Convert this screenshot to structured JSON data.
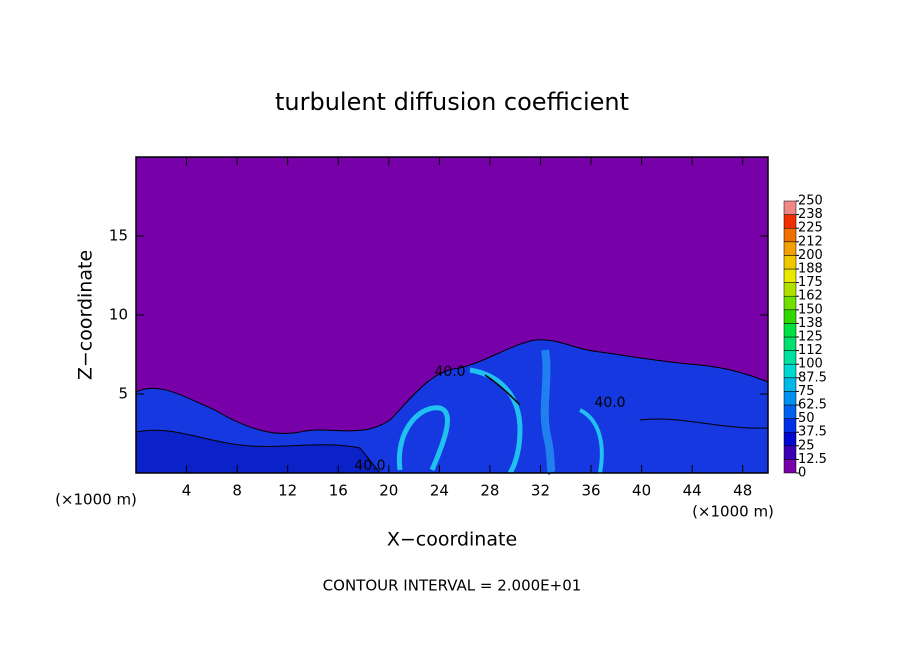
{
  "chart_data": {
    "type": "contour",
    "title": "turbulent diffusion coefficient",
    "x_label": "X−coordinate",
    "y_label": "Z−coordinate",
    "x_unit": "(×1000 m)",
    "y_unit": "(×1000 m)",
    "footnote": "CONTOUR INTERVAL = 2.000E+01",
    "contour_labels": [
      "40.0",
      "40.0",
      "40.0"
    ],
    "xlim": [
      0,
      50
    ],
    "ylim": [
      0,
      20
    ],
    "xticks": [
      4,
      8,
      12,
      16,
      20,
      24,
      28,
      32,
      36,
      40,
      44,
      48
    ],
    "yticks": [
      5,
      10,
      15
    ],
    "colorbar": {
      "levels": [
        0,
        12.5,
        25,
        37.5,
        50,
        62.5,
        75,
        87.5,
        100,
        112,
        125,
        138,
        150,
        162,
        175,
        188,
        200,
        212,
        225,
        238,
        250
      ],
      "colors": [
        "#7800a8",
        "#3c00b4",
        "#0008d0",
        "#0030e8",
        "#0060f0",
        "#0090f0",
        "#00b8e8",
        "#00d8d0",
        "#00e0a0",
        "#00e070",
        "#00e040",
        "#30d800",
        "#70e000",
        "#b0e000",
        "#e8e800",
        "#f0c800",
        "#f0a000",
        "#f07000",
        "#f03000",
        "#f08888"
      ]
    }
  }
}
